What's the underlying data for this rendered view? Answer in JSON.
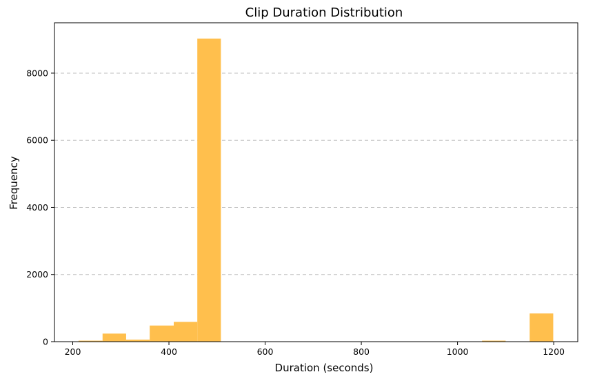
{
  "chart_data": {
    "type": "bar",
    "title": "Clip Duration Distribution",
    "xlabel": "Duration (seconds)",
    "ylabel": "Frequency",
    "xlim": [
      162,
      1250
    ],
    "ylim": [
      0,
      9500
    ],
    "xticks": [
      200,
      400,
      600,
      800,
      1000,
      1200
    ],
    "yticks": [
      0,
      2000,
      4000,
      6000,
      8000
    ],
    "grid": "y-dashed",
    "bar_color": "#FFBF4D",
    "bins": [
      {
        "x0": 212,
        "x1": 262,
        "value": 30
      },
      {
        "x0": 262,
        "x1": 311,
        "value": 240
      },
      {
        "x0": 311,
        "x1": 360,
        "value": 60
      },
      {
        "x0": 360,
        "x1": 410,
        "value": 480
      },
      {
        "x0": 410,
        "x1": 459,
        "value": 590
      },
      {
        "x0": 459,
        "x1": 508,
        "value": 9030
      },
      {
        "x0": 508,
        "x1": 558,
        "value": 0
      },
      {
        "x0": 558,
        "x1": 607,
        "value": 0
      },
      {
        "x0": 607,
        "x1": 656,
        "value": 0
      },
      {
        "x0": 656,
        "x1": 706,
        "value": 0
      },
      {
        "x0": 706,
        "x1": 755,
        "value": 0
      },
      {
        "x0": 755,
        "x1": 804,
        "value": 0
      },
      {
        "x0": 804,
        "x1": 854,
        "value": 0
      },
      {
        "x0": 854,
        "x1": 903,
        "value": 0
      },
      {
        "x0": 903,
        "x1": 952,
        "value": 10
      },
      {
        "x0": 952,
        "x1": 1002,
        "value": 0
      },
      {
        "x0": 1002,
        "x1": 1051,
        "value": 0
      },
      {
        "x0": 1051,
        "x1": 1100,
        "value": 30
      },
      {
        "x0": 1100,
        "x1": 1150,
        "value": 0
      },
      {
        "x0": 1150,
        "x1": 1199,
        "value": 840
      }
    ]
  }
}
